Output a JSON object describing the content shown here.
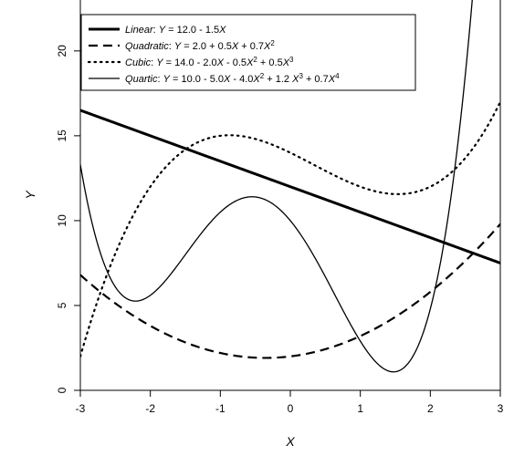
{
  "chart_data": {
    "type": "line",
    "title": "",
    "xlabel": "X",
    "ylabel": "Y",
    "xlim": [
      -3,
      3
    ],
    "ylim": [
      0,
      23
    ],
    "x_ticks": [
      "-3",
      "-2",
      "-1",
      "0",
      "1",
      "2",
      "3"
    ],
    "y_ticks": [
      "0",
      "5",
      "10",
      "15",
      "20"
    ],
    "grid": false,
    "legend_position": "top-left",
    "series": [
      {
        "key": "linear",
        "name": "Linear",
        "equation": "Y = 12.0 - 1.5X",
        "coefficients": [
          12.0,
          -1.5
        ],
        "line_style": "solid-thick",
        "color": "#000000"
      },
      {
        "key": "quadratic",
        "name": "Quadratic",
        "equation": "Y = 2.0 + 0.5X + 0.7X²",
        "coefficients": [
          2.0,
          0.5,
          0.7
        ],
        "line_style": "dashed",
        "color": "#000000"
      },
      {
        "key": "cubic",
        "name": "Cubic",
        "equation": "Y = 14.0 - 2.0X - 0.5X² + 0.5X³",
        "coefficients": [
          14.0,
          -2.0,
          -0.5,
          0.5
        ],
        "line_style": "dotted",
        "color": "#000000"
      },
      {
        "key": "quartic",
        "name": "Quartic",
        "equation": "Y = 10.0 - 5.0X - 4.0X² + 1.2 X³ + 0.7X⁴",
        "coefficients": [
          10.0,
          -5.0,
          -4.0,
          1.2,
          0.7
        ],
        "line_style": "solid-thin",
        "color": "#000000"
      }
    ]
  }
}
